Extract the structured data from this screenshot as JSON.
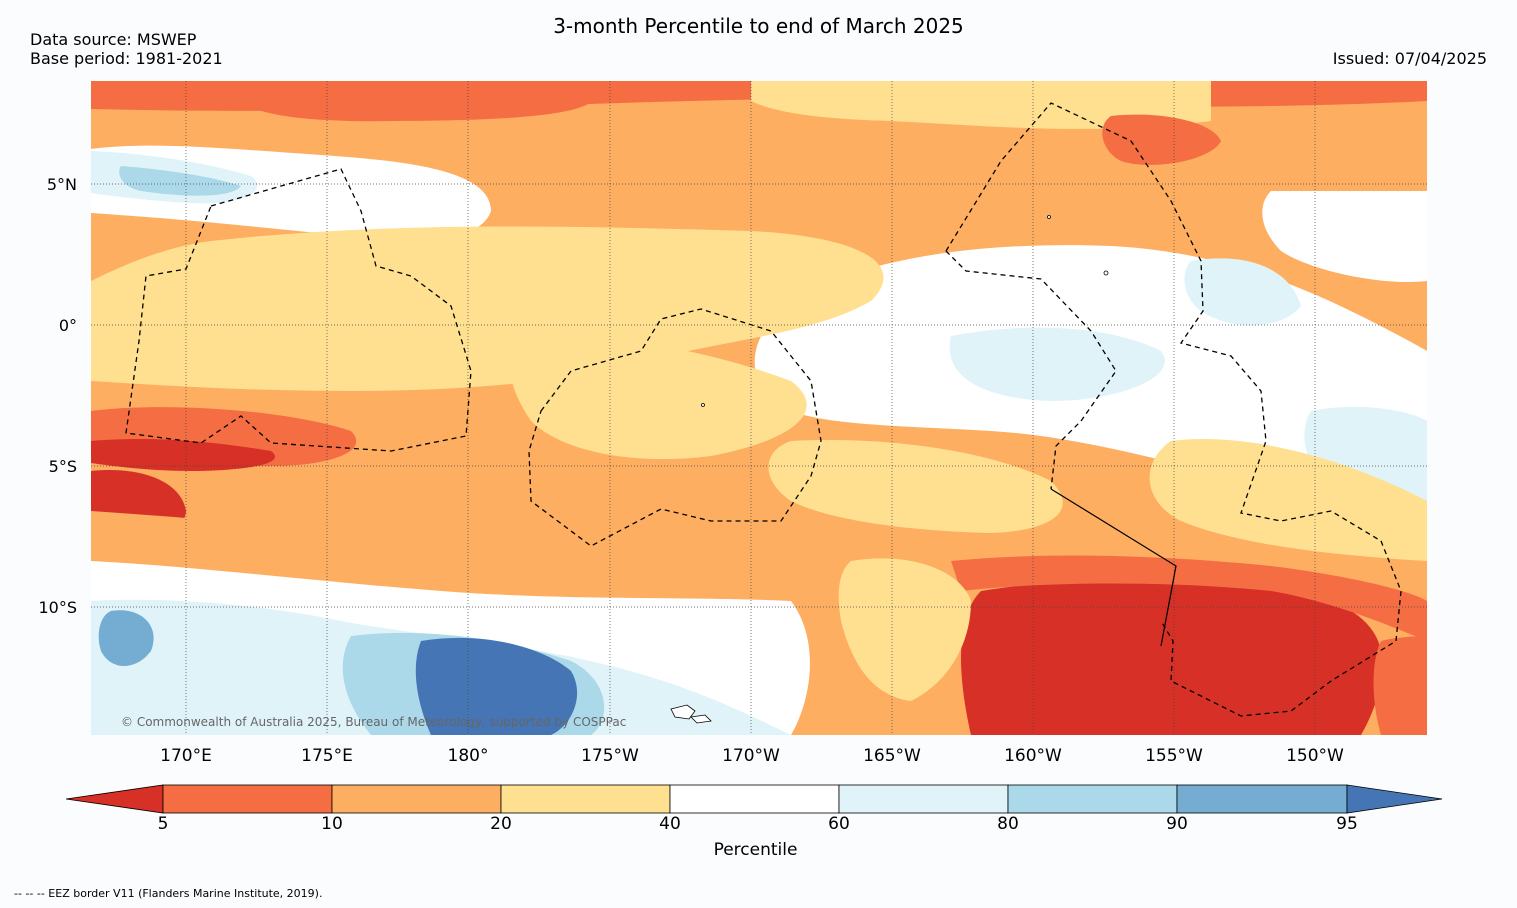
{
  "title": "3-month Percentile to end of March 2025",
  "data_source": "Data source: MSWEP",
  "base_period": "Base period: 1981-2021",
  "issued": "Issued: 07/04/2025",
  "copyright": "© Commonwealth of Australia 2025, Bureau of Meteorology, supported by COSPPac",
  "eez_note": "--  --  -- EEZ border V11 (Flanders Marine Institute, 2019).",
  "lat_labels": [
    "5°N",
    "0°",
    "5°S",
    "10°S"
  ],
  "lon_labels": [
    "170°E",
    "175°E",
    "180°",
    "175°W",
    "170°W",
    "165°W",
    "160°W",
    "155°W",
    "150°W"
  ],
  "colorbar": {
    "label": "Percentile",
    "ticks": [
      "5",
      "10",
      "20",
      "40",
      "60",
      "80",
      "90",
      "95"
    ],
    "colors": [
      "#d73027",
      "#f46d43",
      "#fdae61",
      "#fee090",
      "#ffffff",
      "#e0f3f8",
      "#abd9e9",
      "#74add1",
      "#4575b4"
    ]
  }
}
